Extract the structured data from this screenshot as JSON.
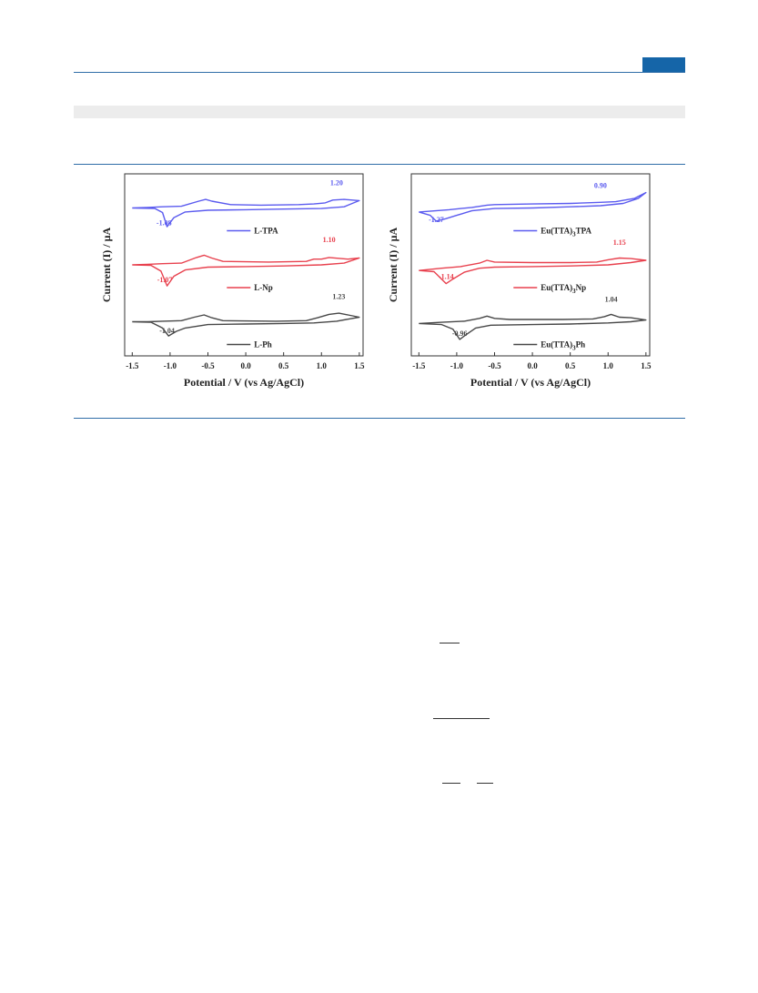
{
  "header": {
    "accent_color": "#1565a8"
  },
  "chart_data": [
    {
      "type": "line",
      "xlabel": "Potential / V (vs Ag/AgCl)",
      "ylabel": "Current (I) / μA",
      "xlim": [
        -1.6,
        1.55
      ],
      "x_ticks": [
        "-1.5",
        "-1.0",
        "-0.5",
        "0.0",
        "0.5",
        "1.0",
        "1.5"
      ],
      "grid": false,
      "legend_position": "inline",
      "series": [
        {
          "name": "L-TPA",
          "color": "#5b5bef",
          "offset": 2.0,
          "peak_labels": [
            {
              "x": -1.08,
              "text": "-1.08",
              "dy": -0.35
            },
            {
              "x": 1.2,
              "text": "1.20",
              "dy": 0.35
            }
          ],
          "forward": [
            [
              -1.5,
              -0.05
            ],
            [
              -1.2,
              -0.06
            ],
            [
              -1.1,
              -0.13
            ],
            [
              -1.04,
              -0.38
            ],
            [
              -0.95,
              -0.22
            ],
            [
              -0.8,
              -0.12
            ],
            [
              -0.5,
              -0.09
            ],
            [
              0.0,
              -0.08
            ],
            [
              0.5,
              -0.07
            ],
            [
              1.0,
              -0.06
            ],
            [
              1.3,
              -0.03
            ],
            [
              1.5,
              0.08
            ]
          ],
          "reverse": [
            [
              1.5,
              0.08
            ],
            [
              1.3,
              0.1
            ],
            [
              1.15,
              0.09
            ],
            [
              1.05,
              0.04
            ],
            [
              0.9,
              0.02
            ],
            [
              0.7,
              0.01
            ],
            [
              0.2,
              0.0
            ],
            [
              -0.2,
              0.01
            ],
            [
              -0.45,
              0.07
            ],
            [
              -0.53,
              0.1
            ],
            [
              -0.62,
              0.07
            ],
            [
              -0.85,
              -0.02
            ],
            [
              -1.1,
              -0.03
            ],
            [
              -1.3,
              -0.04
            ],
            [
              -1.5,
              -0.05
            ]
          ]
        },
        {
          "name": "L-Np",
          "color": "#e8414e",
          "offset": 1.0,
          "peak_labels": [
            {
              "x": -1.07,
              "text": "-1.07",
              "dy": -0.35
            },
            {
              "x": 1.1,
              "text": "1.10",
              "dy": 0.35
            }
          ],
          "forward": [
            [
              -1.5,
              -0.05
            ],
            [
              -1.25,
              -0.06
            ],
            [
              -1.12,
              -0.16
            ],
            [
              -1.04,
              -0.42
            ],
            [
              -0.95,
              -0.25
            ],
            [
              -0.8,
              -0.14
            ],
            [
              -0.5,
              -0.09
            ],
            [
              0.0,
              -0.08
            ],
            [
              0.5,
              -0.07
            ],
            [
              1.0,
              -0.05
            ],
            [
              1.3,
              -0.02
            ],
            [
              1.5,
              0.07
            ]
          ],
          "reverse": [
            [
              1.5,
              0.07
            ],
            [
              1.35,
              0.05
            ],
            [
              1.1,
              0.08
            ],
            [
              1.0,
              0.05
            ],
            [
              0.9,
              0.05
            ],
            [
              0.8,
              0.01
            ],
            [
              0.3,
              0.0
            ],
            [
              -0.3,
              0.01
            ],
            [
              -0.45,
              0.07
            ],
            [
              -0.55,
              0.12
            ],
            [
              -0.65,
              0.08
            ],
            [
              -0.85,
              -0.02
            ],
            [
              -1.1,
              -0.03
            ],
            [
              -1.3,
              -0.04
            ],
            [
              -1.5,
              -0.05
            ]
          ]
        },
        {
          "name": "L-Ph",
          "color": "#474747",
          "offset": 0.0,
          "peak_labels": [
            {
              "x": -1.04,
              "text": "-1.04",
              "dy": -0.25
            },
            {
              "x": 1.23,
              "text": "1.23",
              "dy": 0.35
            }
          ],
          "forward": [
            [
              -1.5,
              -0.05
            ],
            [
              -1.25,
              -0.06
            ],
            [
              -1.1,
              -0.16
            ],
            [
              -1.02,
              -0.3
            ],
            [
              -0.92,
              -0.22
            ],
            [
              -0.8,
              -0.16
            ],
            [
              -0.5,
              -0.1
            ],
            [
              0.0,
              -0.09
            ],
            [
              0.5,
              -0.08
            ],
            [
              0.9,
              -0.07
            ],
            [
              1.2,
              -0.04
            ],
            [
              1.5,
              0.03
            ]
          ],
          "reverse": [
            [
              1.5,
              0.03
            ],
            [
              1.35,
              0.07
            ],
            [
              1.23,
              0.1
            ],
            [
              1.1,
              0.08
            ],
            [
              0.95,
              0.02
            ],
            [
              0.8,
              -0.03
            ],
            [
              0.4,
              -0.04
            ],
            [
              -0.3,
              -0.03
            ],
            [
              -0.45,
              0.02
            ],
            [
              -0.55,
              0.07
            ],
            [
              -0.68,
              0.03
            ],
            [
              -0.85,
              -0.03
            ],
            [
              -1.1,
              -0.04
            ],
            [
              -1.3,
              -0.05
            ],
            [
              -1.5,
              -0.05
            ]
          ]
        }
      ]
    },
    {
      "type": "line",
      "xlabel": "Potential / V (vs Ag/AgCl)",
      "ylabel": "Current (I) / μA",
      "xlim": [
        -1.6,
        1.55
      ],
      "x_ticks": [
        "-1.5",
        "-1.0",
        "-0.5",
        "0.0",
        "0.5",
        "1.0",
        "1.5"
      ],
      "grid": false,
      "legend_position": "inline",
      "series": [
        {
          "name": "Eu(TTA)3TPA",
          "color": "#5b5bef",
          "offset": 2.0,
          "peak_labels": [
            {
              "x": -1.27,
              "text": "-1.27",
              "dy": -0.3
            },
            {
              "x": 0.9,
              "text": "0.90",
              "dy": 0.3
            }
          ],
          "forward": [
            [
              -1.5,
              -0.12
            ],
            [
              -1.35,
              -0.18
            ],
            [
              -1.27,
              -0.28
            ],
            [
              -1.15,
              -0.24
            ],
            [
              -1.0,
              -0.18
            ],
            [
              -0.8,
              -0.1
            ],
            [
              -0.5,
              -0.06
            ],
            [
              0.0,
              -0.05
            ],
            [
              0.5,
              -0.03
            ],
            [
              0.9,
              -0.01
            ],
            [
              1.2,
              0.03
            ],
            [
              1.4,
              0.12
            ],
            [
              1.5,
              0.22
            ]
          ],
          "reverse": [
            [
              1.5,
              0.22
            ],
            [
              1.35,
              0.12
            ],
            [
              1.1,
              0.06
            ],
            [
              0.9,
              0.05
            ],
            [
              0.5,
              0.03
            ],
            [
              0.0,
              0.02
            ],
            [
              -0.5,
              0.01
            ],
            [
              -0.6,
              0.0
            ],
            [
              -0.8,
              -0.04
            ],
            [
              -1.1,
              -0.08
            ],
            [
              -1.5,
              -0.12
            ]
          ]
        },
        {
          "name": "Eu(TTA)3Np",
          "color": "#e8414e",
          "offset": 1.0,
          "peak_labels": [
            {
              "x": -1.14,
              "text": "-1.14",
              "dy": -0.3
            },
            {
              "x": 1.15,
              "text": "1.15",
              "dy": 0.3
            }
          ],
          "forward": [
            [
              -1.5,
              -0.15
            ],
            [
              -1.3,
              -0.17
            ],
            [
              -1.14,
              -0.38
            ],
            [
              -1.05,
              -0.3
            ],
            [
              -0.9,
              -0.18
            ],
            [
              -0.7,
              -0.11
            ],
            [
              -0.5,
              -0.09
            ],
            [
              0.0,
              -0.08
            ],
            [
              0.5,
              -0.07
            ],
            [
              1.0,
              -0.05
            ],
            [
              1.3,
              -0.01
            ],
            [
              1.5,
              0.03
            ]
          ],
          "reverse": [
            [
              1.5,
              0.03
            ],
            [
              1.3,
              0.06
            ],
            [
              1.15,
              0.07
            ],
            [
              1.0,
              0.04
            ],
            [
              0.85,
              0.0
            ],
            [
              0.5,
              -0.01
            ],
            [
              0.0,
              -0.01
            ],
            [
              -0.5,
              0.0
            ],
            [
              -0.6,
              0.03
            ],
            [
              -0.7,
              -0.02
            ],
            [
              -0.95,
              -0.08
            ],
            [
              -1.2,
              -0.11
            ],
            [
              -1.5,
              -0.15
            ]
          ]
        },
        {
          "name": "Eu(TTA)3Ph",
          "color": "#474747",
          "offset": 0.0,
          "peak_labels": [
            {
              "x": -0.96,
              "text": "-0.96",
              "dy": -0.3
            },
            {
              "x": 1.04,
              "text": "1.04",
              "dy": 0.3
            }
          ],
          "forward": [
            [
              -1.5,
              -0.08
            ],
            [
              -1.2,
              -0.1
            ],
            [
              -1.05,
              -0.18
            ],
            [
              -0.96,
              -0.36
            ],
            [
              -0.88,
              -0.28
            ],
            [
              -0.75,
              -0.16
            ],
            [
              -0.55,
              -0.11
            ],
            [
              0.0,
              -0.1
            ],
            [
              0.5,
              -0.09
            ],
            [
              1.0,
              -0.07
            ],
            [
              1.3,
              -0.05
            ],
            [
              1.5,
              -0.02
            ]
          ],
          "reverse": [
            [
              1.5,
              -0.02
            ],
            [
              1.3,
              0.02
            ],
            [
              1.15,
              0.03
            ],
            [
              1.04,
              0.08
            ],
            [
              0.95,
              0.04
            ],
            [
              0.8,
              0.0
            ],
            [
              0.4,
              -0.01
            ],
            [
              -0.3,
              -0.01
            ],
            [
              -0.5,
              0.01
            ],
            [
              -0.6,
              0.05
            ],
            [
              -0.7,
              0.01
            ],
            [
              -0.9,
              -0.04
            ],
            [
              -1.2,
              -0.06
            ],
            [
              -1.5,
              -0.08
            ]
          ]
        }
      ]
    }
  ]
}
